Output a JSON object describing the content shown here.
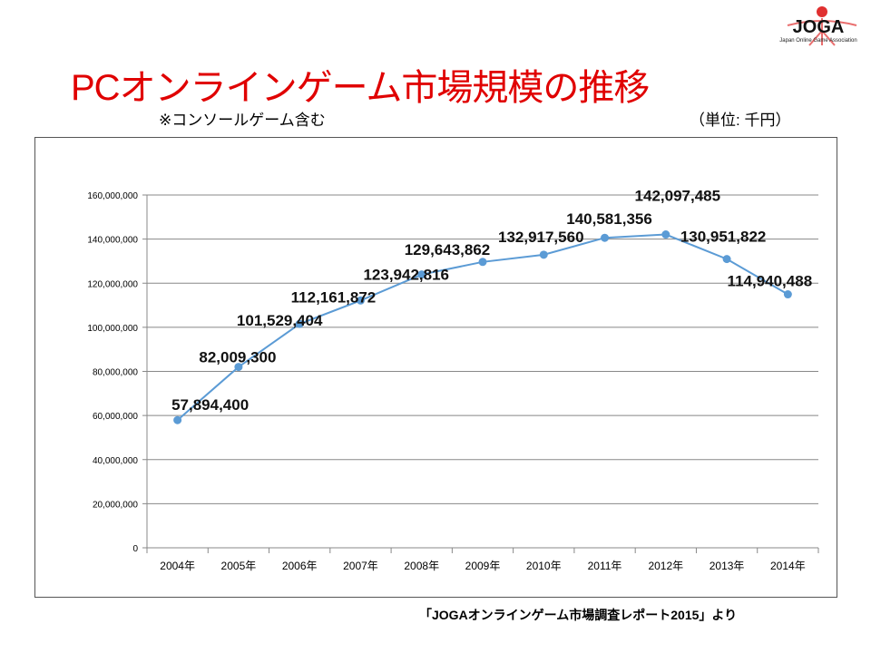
{
  "title": "PCオンラインゲーム市場規模の推移",
  "note": "※コンソールゲーム含む",
  "unit": "（単位: 千円）",
  "source": "「JOGAオンラインゲーム市場調査レポート2015」より",
  "logo": {
    "text": "JOGA",
    "subtitle": "Japan Online Game Association"
  },
  "chart_data": {
    "type": "line",
    "title": "PCオンラインゲーム市場規模の推移",
    "categories": [
      "2004年",
      "2005年",
      "2006年",
      "2007年",
      "2008年",
      "2009年",
      "2010年",
      "2011年",
      "2012年",
      "2013年",
      "2014年"
    ],
    "values": [
      57894400,
      82009300,
      101529404,
      112161872,
      123942816,
      129643862,
      132917560,
      140581356,
      142097485,
      130951822,
      114940488
    ],
    "data_labels": [
      "57,894,400",
      "82,009,300",
      "101,529,404",
      "112,161,872",
      "123,942,816",
      "129,643,862",
      "132,917,560",
      "140,581,356",
      "142,097,485",
      "130,951,822",
      "114,940,488"
    ],
    "yticks": [
      0,
      20000000,
      40000000,
      60000000,
      80000000,
      100000000,
      120000000,
      140000000,
      160000000
    ],
    "ytick_labels": [
      "0",
      "20,000,000",
      "40,000,000",
      "60,000,000",
      "80,000,000",
      "100,000,000",
      "120,000,000",
      "140,000,000",
      "160,000,000"
    ],
    "ylim": [
      0,
      160000000
    ],
    "grid": true,
    "color": "#5b9bd5",
    "xlabel": "",
    "ylabel": "(単位: 千円)"
  }
}
